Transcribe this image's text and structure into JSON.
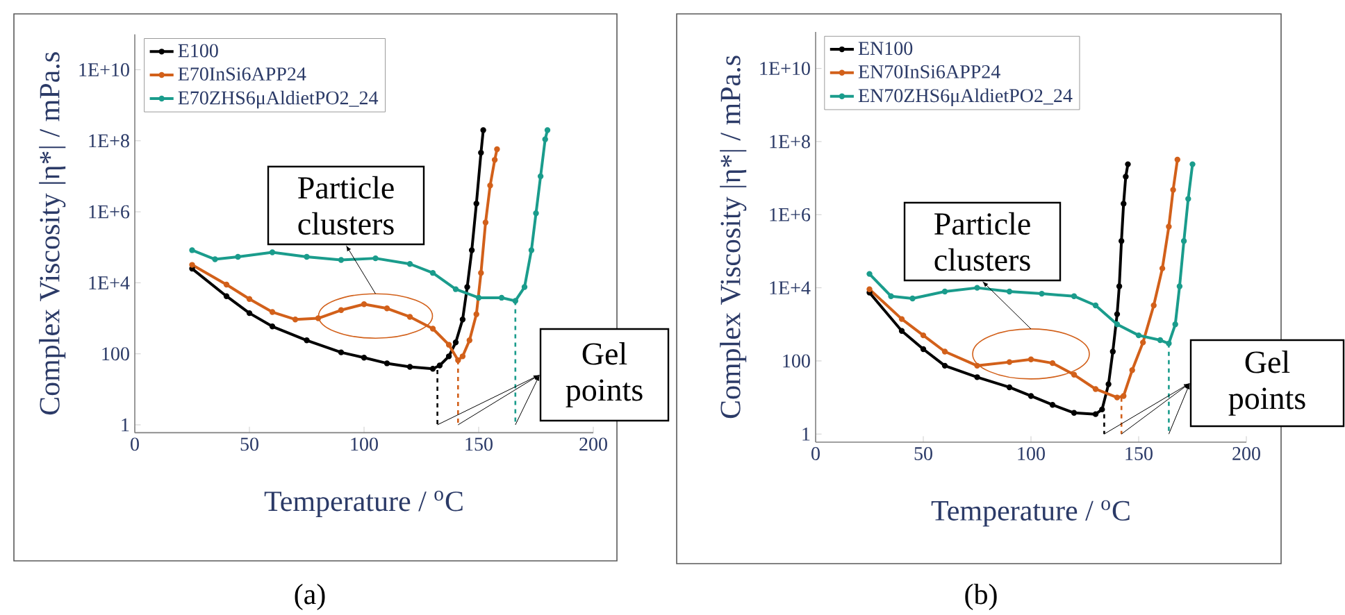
{
  "chart_data": [
    {
      "type": "line",
      "xlabel": "Temperature / $^{o}$C",
      "ylabel": "Complex Viscosity |η*| / mPa.s",
      "log": "y",
      "legend": "top left",
      "xlim": [
        0,
        200
      ],
      "xticks": [
        0,
        50,
        100,
        150,
        200
      ],
      "ylim": [
        0.6,
        100000000000.0
      ],
      "yticks": [
        1,
        100,
        {
          "value": 10000,
          "label": "1E+4"
        },
        {
          "value": 1000000,
          "label": "1E+6"
        },
        {
          "value": 100000000,
          "label": "1E+8"
        },
        {
          "value": 10000000000,
          "label": "1E+10"
        }
      ],
      "series": [
        {
          "name": "E100",
          "color": "#000000",
          "marker": "circle",
          "line_style": "solid",
          "x": [
            25,
            40,
            50,
            60,
            75,
            90,
            100,
            110,
            120,
            130,
            133,
            137,
            140,
            143,
            145,
            147,
            149,
            151,
            152
          ],
          "values": [
            25000,
            4200,
            1400,
            590,
            240,
            110,
            78,
            54,
            43,
            38,
            47,
            85,
            210,
            930,
            7600,
            83000,
            1700000,
            46000000,
            200000000
          ]
        },
        {
          "name": "E70InSi6APP24",
          "color": "#d2601a",
          "marker": "circle",
          "line_style": "solid",
          "x": [
            25,
            40,
            50,
            60,
            70,
            80,
            90,
            100,
            110,
            120,
            130,
            137,
            141,
            143,
            146,
            149,
            151,
            153,
            155,
            157,
            158
          ],
          "values": [
            32000,
            8900,
            3500,
            1500,
            930,
            1000,
            1700,
            2500,
            1900,
            1100,
            510,
            180,
            66,
            85,
            240,
            1300,
            19000,
            500000,
            5500000,
            29000000,
            58000000
          ]
        },
        {
          "name": "E70ZHS6μAldietPO2_24",
          "color": "#1a9c8c",
          "marker": "circle",
          "line_style": "solid",
          "x": [
            25,
            35,
            45,
            60,
            75,
            90,
            105,
            120,
            130,
            140,
            150,
            160,
            166,
            170,
            173,
            175,
            177,
            179,
            180
          ],
          "values": [
            83000,
            46000,
            54000,
            72000,
            54000,
            44000,
            49000,
            34000,
            19000,
            6600,
            3800,
            3800,
            3100,
            7600,
            83000,
            910000,
            10000000,
            110000000,
            200000000
          ]
        },
        {
          "color": "#000000",
          "marker": "none",
          "line_style": "dashed",
          "x": [
            132,
            132
          ],
          "values": [
            35,
            1
          ]
        },
        {
          "color": "#d2601a",
          "marker": "none",
          "line_style": "dashed",
          "x": [
            141,
            141
          ],
          "values": [
            66,
            1
          ]
        },
        {
          "color": "#1a9c8c",
          "marker": "none",
          "line_style": "dashed",
          "x": [
            166,
            166
          ],
          "values": [
            3100,
            1
          ]
        }
      ],
      "annotations": [
        "Particle clusters",
        {
          "text": "Gel points",
          "x": 132,
          "y": 1
        },
        "(a)"
      ]
    },
    {
      "type": "line",
      "xlabel": "Temperature / $^{o}$C",
      "ylabel": "Complex Viscosity |η*| / mPa.s",
      "log": "y",
      "legend": "top left",
      "xlim": [
        0,
        200
      ],
      "xticks": [
        0,
        50,
        100,
        150,
        200
      ],
      "ylim": [
        0.6,
        100000000000.0
      ],
      "yticks": [
        1,
        100,
        {
          "value": 10000,
          "label": "1E+4"
        },
        {
          "value": 1000000,
          "label": "1E+6"
        },
        {
          "value": 100000000,
          "label": "1E+8"
        },
        {
          "value": 10000000000,
          "label": "1E+10"
        }
      ],
      "series": [
        {
          "name": "EN100",
          "color": "#000000",
          "marker": "circle",
          "line_style": "solid",
          "x": [
            25,
            40,
            50,
            60,
            75,
            90,
            100,
            110,
            120,
            130,
            133,
            136,
            138,
            140,
            141,
            142,
            143,
            144,
            145
          ],
          "values": [
            7400,
            660,
            210,
            74,
            36,
            19,
            11,
            6.3,
            3.8,
            3.5,
            4.7,
            23,
            180,
            1900,
            11000,
            190000,
            2000000,
            11000000,
            24000000
          ]
        },
        {
          "name": "EN70InSi6APP24",
          "color": "#d2601a",
          "marker": "circle",
          "line_style": "solid",
          "x": [
            25,
            40,
            50,
            60,
            75,
            90,
            100,
            110,
            120,
            130,
            140,
            143,
            147,
            152,
            157,
            161,
            164,
            166,
            168
          ],
          "values": [
            9100,
            1400,
            500,
            180,
            74,
            93,
            110,
            87,
            42,
            17,
            10,
            11,
            56,
            320,
            3300,
            34000,
            470000,
            4800000,
            32000000
          ]
        },
        {
          "name": "EN70ZHS6μAldietPO2_24",
          "color": "#1a9c8c",
          "marker": "circle",
          "line_style": "solid",
          "x": [
            25,
            35,
            45,
            60,
            75,
            90,
            105,
            120,
            130,
            140,
            150,
            160,
            164,
            167,
            169,
            171,
            173,
            175
          ],
          "values": [
            24000,
            5900,
            5100,
            7900,
            10000,
            7900,
            6900,
            5900,
            3300,
            1000,
            500,
            370,
            300,
            1000,
            11000,
            190000,
            2700000,
            24000000
          ]
        },
        {
          "color": "#000000",
          "marker": "none",
          "line_style": "dashed",
          "x": [
            134,
            134
          ],
          "values": [
            3.5,
            1
          ]
        },
        {
          "color": "#d2601a",
          "marker": "none",
          "line_style": "dashed",
          "x": [
            142,
            142
          ],
          "values": [
            10,
            1
          ]
        },
        {
          "color": "#1a9c8c",
          "marker": "none",
          "line_style": "dashed",
          "x": [
            164,
            164
          ],
          "values": [
            300,
            1
          ]
        }
      ],
      "annotations": [
        "Particle clusters",
        "Gel points",
        "(b)"
      ]
    }
  ]
}
